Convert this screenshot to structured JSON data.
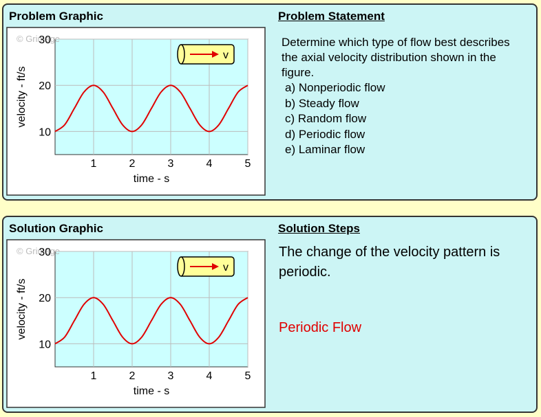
{
  "problem": {
    "graphic_title": "Problem Graphic",
    "statement_title": "Problem Statement",
    "statement": "Determine which type of flow best describes the axial velocity distribution shown in the figure.",
    "options": [
      "a) Nonperiodic flow",
      "b) Steady flow",
      "c) Random flow",
      "d) Periodic flow",
      "e) Laminar flow"
    ],
    "chart": {
      "type": "line",
      "watermark": "© Grimage",
      "icon_label": "v",
      "xlabel": "time - s",
      "ylabel": "velocity - ft/s",
      "x": [
        0,
        0.25,
        0.5,
        0.75,
        1,
        1.25,
        1.5,
        1.75,
        2,
        2.25,
        2.5,
        2.75,
        3,
        3.25,
        3.5,
        3.75,
        4,
        4.25,
        4.5,
        4.75,
        5
      ],
      "values": [
        10,
        11.46,
        15,
        18.54,
        20,
        18.54,
        15,
        11.46,
        10,
        11.46,
        15,
        18.54,
        20,
        18.54,
        15,
        11.46,
        10,
        11.46,
        15,
        18.54,
        20
      ],
      "color": "#e00000",
      "xlim": [
        0,
        5
      ],
      "xticks": [
        1,
        2,
        3,
        4,
        5
      ],
      "ylim": [
        5,
        30
      ],
      "yticks": [
        10,
        20,
        30
      ],
      "grid": true
    }
  },
  "solution": {
    "graphic_title": "Solution Graphic",
    "steps_title": "Solution Steps",
    "steps": "The change of the velocity pattern is periodic.",
    "answer": "Periodic Flow",
    "chart": {
      "type": "line",
      "watermark": "© Grimage",
      "icon_label": "v",
      "xlabel": "time - s",
      "ylabel": "velocity - ft/s",
      "x": [
        0,
        0.25,
        0.5,
        0.75,
        1,
        1.25,
        1.5,
        1.75,
        2,
        2.25,
        2.5,
        2.75,
        3,
        3.25,
        3.5,
        3.75,
        4,
        4.25,
        4.5,
        4.75,
        5
      ],
      "values": [
        10,
        11.46,
        15,
        18.54,
        20,
        18.54,
        15,
        11.46,
        10,
        11.46,
        15,
        18.54,
        20,
        18.54,
        15,
        11.46,
        10,
        11.46,
        15,
        18.54,
        20
      ],
      "color": "#e00000",
      "xlim": [
        0,
        5
      ],
      "xticks": [
        1,
        2,
        3,
        4,
        5
      ],
      "ylim": [
        5,
        30
      ],
      "yticks": [
        10,
        20,
        30
      ],
      "grid": true
    }
  }
}
